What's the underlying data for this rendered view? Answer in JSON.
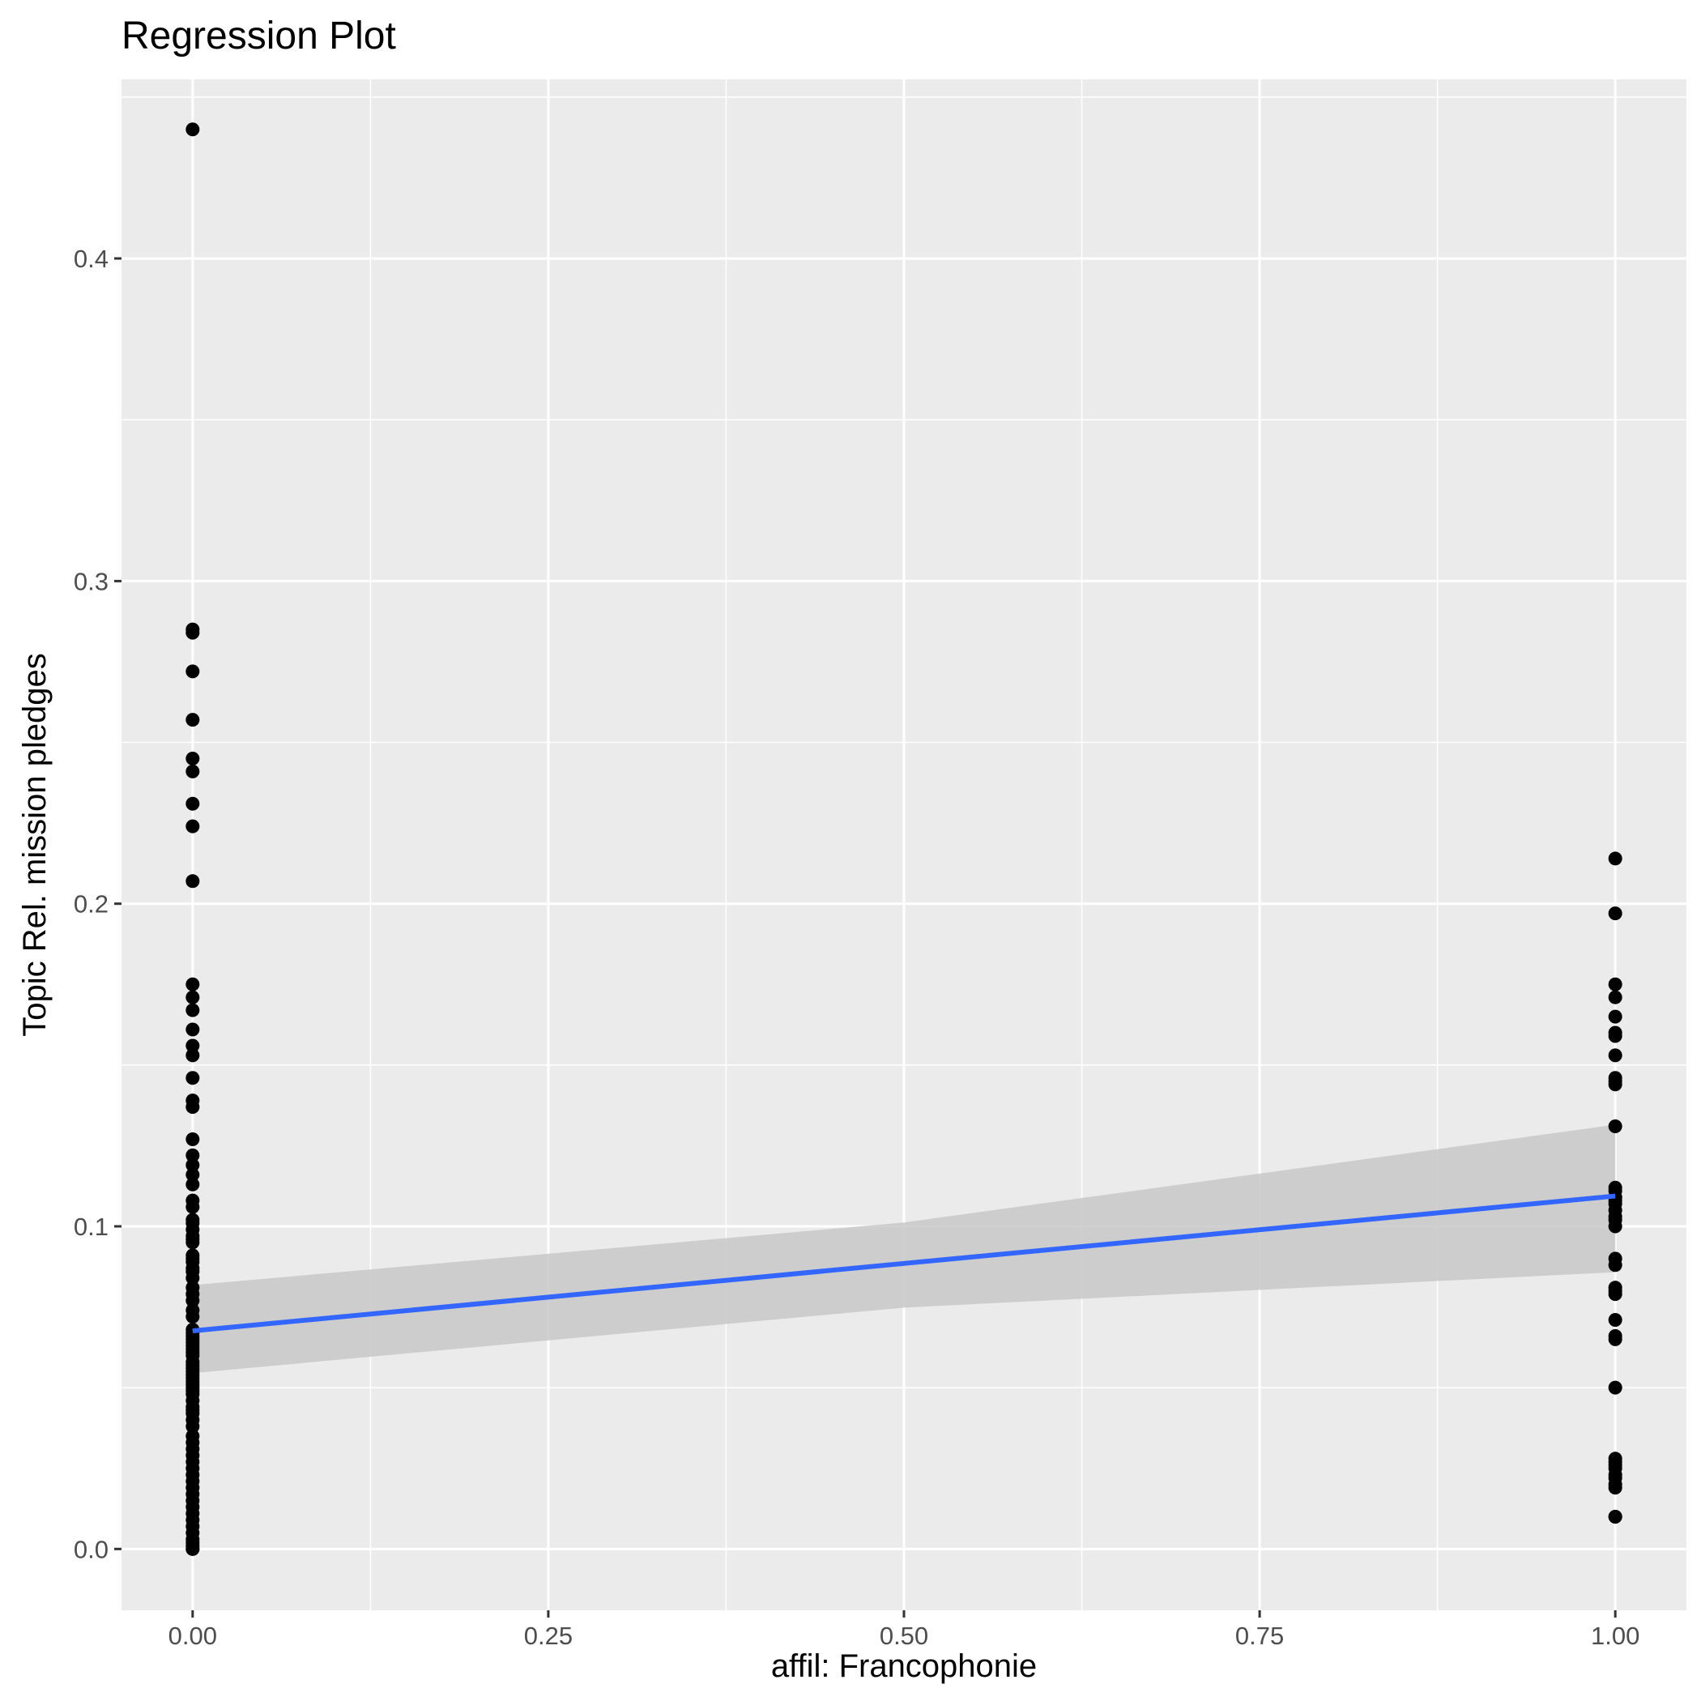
{
  "chart_data": {
    "type": "scatter",
    "title": "Regression Plot",
    "xlabel": "affil: Francophonie",
    "ylabel": "Topic Rel. mission pledges",
    "xlim": [
      -0.05,
      1.05
    ],
    "ylim": [
      -0.019,
      0.4555
    ],
    "x_ticks": [
      0.0,
      0.25,
      0.5,
      0.75,
      1.0
    ],
    "x_tick_labels": [
      "0.00",
      "0.25",
      "0.50",
      "0.75",
      "1.00"
    ],
    "y_ticks": [
      0.0,
      0.1,
      0.2,
      0.3,
      0.4
    ],
    "y_tick_labels": [
      "0.0",
      "0.1",
      "0.2",
      "0.3",
      "0.4"
    ],
    "grid": true,
    "legend": "none",
    "colors": {
      "panel_background": "#ebebeb",
      "grid": "#ffffff",
      "points": "#000000",
      "fit_line": "#3366ff",
      "confidence_band": "#c8c8c8"
    },
    "series": [
      {
        "x": [
          0,
          0,
          0,
          0,
          0,
          0,
          0,
          0,
          0,
          0,
          0,
          0,
          0,
          0,
          0,
          0,
          0,
          0,
          0,
          0,
          0,
          0,
          0,
          0,
          0,
          0,
          0,
          0,
          0,
          0,
          0,
          0,
          0,
          0,
          0,
          0,
          0,
          0,
          0,
          0,
          0,
          0,
          0,
          0,
          0,
          0,
          0,
          0,
          0,
          0,
          0,
          0,
          0,
          0,
          0,
          0,
          0,
          0,
          0,
          0,
          0,
          0,
          0,
          0,
          0,
          0,
          0,
          0,
          0,
          0,
          0,
          0,
          0,
          0,
          0,
          0,
          0,
          0,
          0,
          0,
          0,
          0,
          0,
          0,
          0,
          0,
          0,
          0,
          0,
          0,
          1,
          1,
          1,
          1,
          1,
          1,
          1,
          1,
          1,
          1,
          1,
          1,
          1,
          1,
          1,
          1,
          1,
          1,
          1,
          1,
          1,
          1,
          1,
          1,
          1,
          1,
          1,
          1,
          1,
          1,
          1,
          1,
          1,
          1,
          1,
          1,
          1,
          1,
          1,
          1,
          1
        ],
        "y": [
          0.44,
          0.284,
          0.272,
          0.245,
          0.241,
          0.207,
          0.175,
          0.171,
          0.167,
          0.161,
          0.156,
          0.153,
          0.146,
          0.139,
          0.137,
          0.127,
          0.122,
          0.119,
          0.116,
          0.113,
          0.108,
          0.106,
          0.102,
          0.099,
          0.097,
          0.095,
          0.091,
          0.089,
          0.086,
          0.084,
          0.081,
          0.079,
          0.077,
          0.074,
          0.072,
          0.068,
          0.066,
          0.064,
          0.062,
          0.06,
          0.058,
          0.056,
          0.054,
          0.052,
          0.05,
          0.048,
          0.046,
          0.044,
          0.042,
          0.04,
          0.038,
          0.035,
          0.033,
          0.031,
          0.029,
          0.027,
          0.025,
          0.023,
          0.021,
          0.019,
          0.017,
          0.015,
          0.013,
          0.011,
          0.009,
          0.007,
          0.005,
          0.003,
          0.002,
          0.001,
          0.0,
          0.0,
          0.043,
          0.049,
          0.051,
          0.053,
          0.055,
          0.057,
          0.061,
          0.063,
          0.065,
          0.067,
          0.087,
          0.09,
          0.096,
          0.101,
          0.285,
          0.257,
          0.231,
          0.224,
          0.214,
          0.197,
          0.175,
          0.171,
          0.165,
          0.16,
          0.153,
          0.146,
          0.145,
          0.131,
          0.112,
          0.111,
          0.109,
          0.107,
          0.105,
          0.103,
          0.1,
          0.09,
          0.088,
          0.081,
          0.079,
          0.071,
          0.065,
          0.05,
          0.028,
          0.027,
          0.023,
          0.022,
          0.019,
          0.01,
          0.01,
          0.159,
          0.144,
          0.108,
          0.102,
          0.08,
          0.066,
          0.02,
          0.025,
          0.026,
          0.109
        ]
      }
    ],
    "regression": {
      "x": [
        0.0,
        0.5,
        1.0
      ],
      "fit": [
        0.0676,
        0.0885,
        0.1094
      ],
      "lower": [
        0.0545,
        0.0748,
        0.0858
      ],
      "upper": [
        0.0818,
        0.1012,
        0.1315
      ]
    }
  }
}
